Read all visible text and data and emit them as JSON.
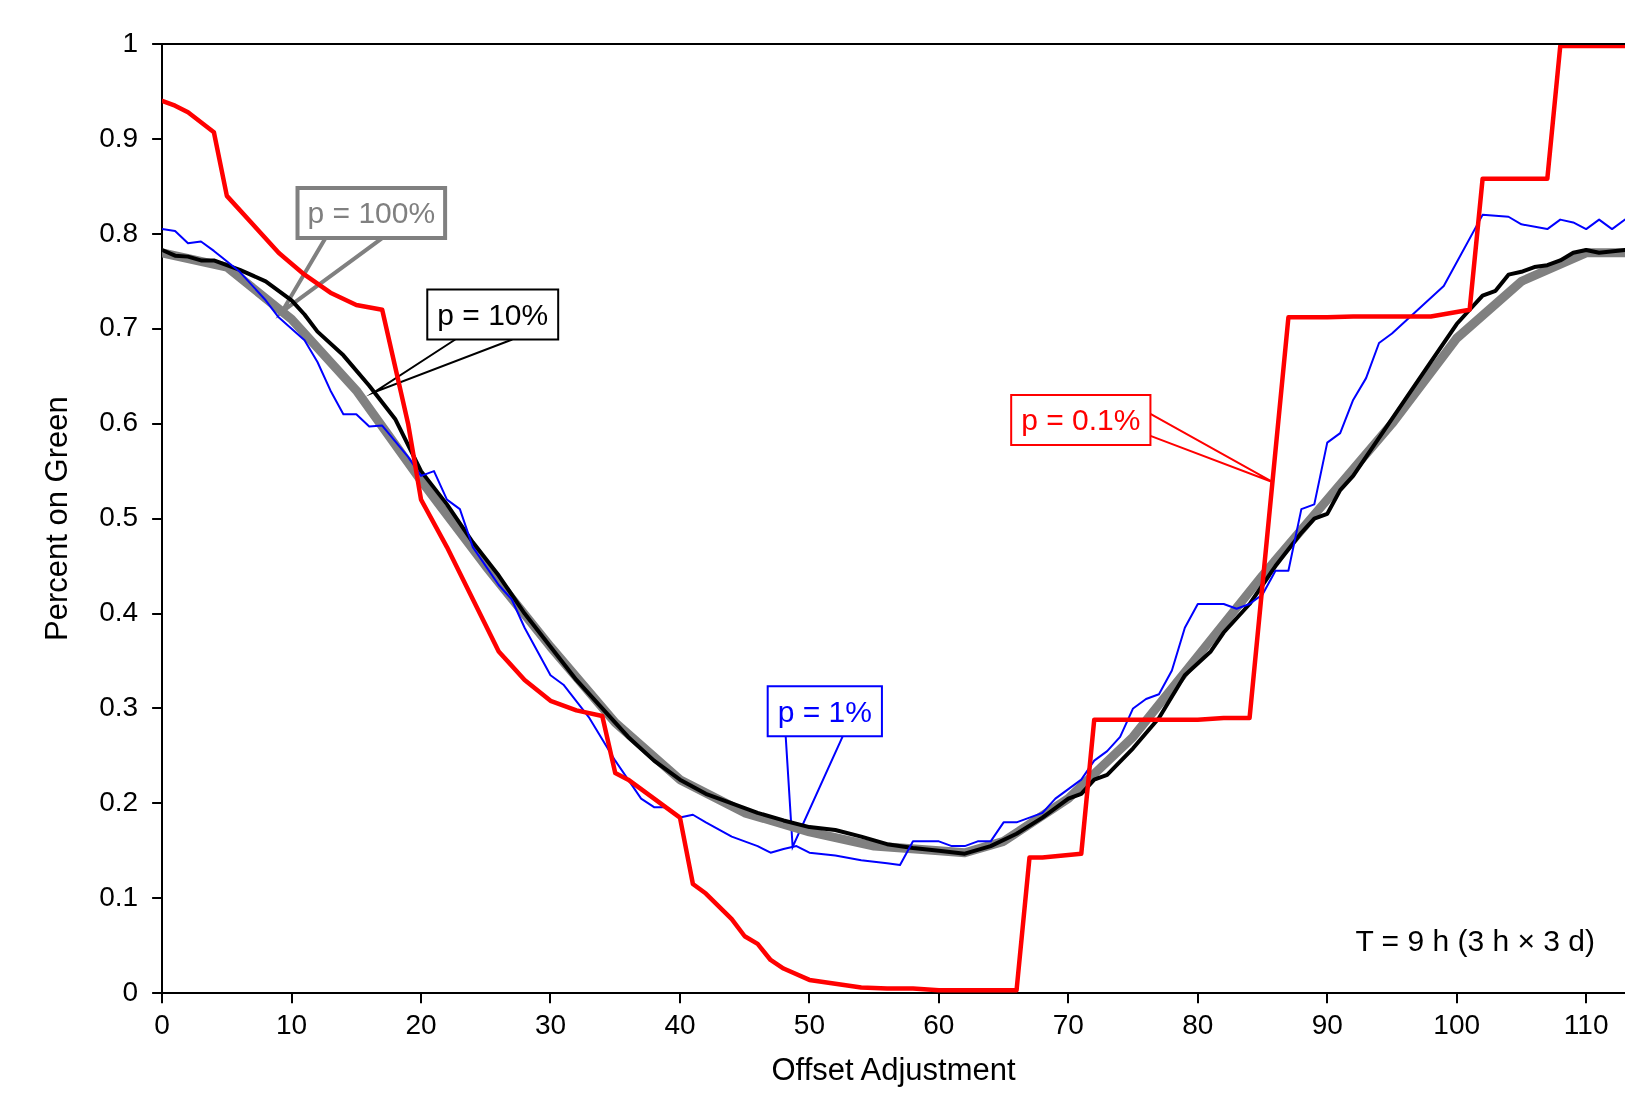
{
  "chart_data": {
    "type": "line",
    "xlabel": "Offset Adjustment",
    "ylabel": "Percent on Green",
    "xlim": [
      0,
      113
    ],
    "ylim": [
      0,
      1
    ],
    "xticks": [
      0,
      10,
      20,
      30,
      40,
      50,
      60,
      70,
      80,
      90,
      100,
      110
    ],
    "yticks": [
      0,
      0.1,
      0.2,
      0.3,
      0.4,
      0.5,
      0.6,
      0.7,
      0.8,
      0.9,
      1
    ],
    "grid": false,
    "legend": false,
    "marker": "none",
    "line_style": "solid",
    "series": [
      {
        "name": "p = 100%",
        "color": "#808080",
        "x": [
          0,
          5,
          10,
          15,
          20,
          25,
          30,
          35,
          40,
          45,
          50,
          55,
          60,
          62,
          65,
          70,
          75,
          80,
          85,
          90,
          95,
          100,
          105,
          110,
          113
        ],
        "values": [
          0.78,
          0.765,
          0.71,
          0.635,
          0.54,
          0.45,
          0.365,
          0.285,
          0.225,
          0.19,
          0.17,
          0.155,
          0.15,
          0.148,
          0.16,
          0.205,
          0.27,
          0.355,
          0.44,
          0.52,
          0.6,
          0.69,
          0.75,
          0.78,
          0.78
        ]
      },
      {
        "name": "p = 10%",
        "color": "#000000",
        "x": [
          0,
          1,
          2,
          3,
          4,
          6,
          8,
          10,
          11,
          12,
          14,
          16,
          18,
          20,
          22,
          24,
          26,
          28,
          30,
          32,
          34,
          36,
          38,
          40,
          42,
          44,
          46,
          48,
          50,
          52,
          54,
          56,
          58,
          60,
          62,
          64,
          66,
          68,
          70,
          71,
          72,
          73,
          75,
          77,
          79,
          81,
          82,
          84,
          86,
          88,
          89,
          90,
          91,
          92,
          94,
          96,
          98,
          100,
          101,
          102,
          103,
          104,
          105,
          106,
          107,
          108,
          109,
          110,
          111,
          113
        ],
        "values": [
          0.783,
          0.777,
          0.776,
          0.772,
          0.772,
          0.762,
          0.75,
          0.73,
          0.715,
          0.697,
          0.672,
          0.64,
          0.605,
          0.55,
          0.515,
          0.475,
          0.44,
          0.4,
          0.365,
          0.33,
          0.3,
          0.27,
          0.245,
          0.225,
          0.21,
          0.2,
          0.19,
          0.182,
          0.175,
          0.172,
          0.165,
          0.157,
          0.153,
          0.15,
          0.147,
          0.155,
          0.168,
          0.185,
          0.205,
          0.21,
          0.225,
          0.23,
          0.258,
          0.29,
          0.335,
          0.36,
          0.38,
          0.41,
          0.45,
          0.485,
          0.5,
          0.505,
          0.53,
          0.545,
          0.585,
          0.625,
          0.665,
          0.705,
          0.72,
          0.735,
          0.74,
          0.757,
          0.76,
          0.765,
          0.767,
          0.772,
          0.78,
          0.783,
          0.78,
          0.783
        ]
      },
      {
        "name": "p = 1%",
        "color": "#0000ff",
        "x": [
          0,
          1,
          2,
          3,
          4,
          6,
          8,
          9,
          11,
          12,
          13,
          14,
          15,
          16,
          17,
          19,
          20,
          21,
          22,
          23,
          24,
          26,
          27,
          28,
          29,
          30,
          31,
          33,
          35,
          37,
          38,
          39,
          40,
          41,
          42,
          44,
          46,
          47,
          48,
          49,
          50,
          52,
          54,
          56,
          57,
          58,
          60,
          61,
          62,
          63,
          64,
          65,
          66,
          67,
          68,
          69,
          71,
          72,
          73,
          74,
          75,
          76,
          77,
          78,
          79,
          80,
          82,
          83,
          84,
          85,
          86,
          87,
          88,
          89,
          90,
          91,
          92,
          93,
          94,
          95,
          97,
          99,
          102,
          104,
          105,
          107,
          108,
          109,
          110,
          111,
          112,
          113
        ],
        "values": [
          0.805,
          0.803,
          0.79,
          0.792,
          0.782,
          0.76,
          0.73,
          0.712,
          0.688,
          0.665,
          0.635,
          0.61,
          0.61,
          0.597,
          0.598,
          0.565,
          0.545,
          0.55,
          0.52,
          0.51,
          0.47,
          0.43,
          0.415,
          0.385,
          0.36,
          0.335,
          0.325,
          0.29,
          0.245,
          0.205,
          0.196,
          0.196,
          0.185,
          0.188,
          0.18,
          0.165,
          0.155,
          0.148,
          0.152,
          0.155,
          0.148,
          0.145,
          0.14,
          0.137,
          0.135,
          0.16,
          0.16,
          0.155,
          0.155,
          0.16,
          0.16,
          0.18,
          0.18,
          0.185,
          0.19,
          0.205,
          0.225,
          0.245,
          0.255,
          0.27,
          0.3,
          0.31,
          0.315,
          0.34,
          0.385,
          0.41,
          0.41,
          0.405,
          0.41,
          0.42,
          0.445,
          0.445,
          0.51,
          0.515,
          0.58,
          0.59,
          0.625,
          0.648,
          0.685,
          0.695,
          0.72,
          0.745,
          0.82,
          0.818,
          0.81,
          0.805,
          0.815,
          0.812,
          0.805,
          0.815,
          0.805,
          0.815
        ]
      },
      {
        "name": "p = 0.1%",
        "color": "#ff0000",
        "x": [
          0,
          1,
          2,
          4,
          5,
          7,
          9,
          11,
          13,
          15,
          17,
          19,
          20,
          22,
          24,
          26,
          28,
          30,
          32,
          34,
          35,
          36,
          38,
          40,
          41,
          42,
          44,
          45,
          46,
          47,
          48,
          50,
          52,
          54,
          56,
          58,
          60,
          62,
          64,
          66,
          67,
          68,
          71,
          72,
          76,
          80,
          82,
          84,
          87,
          90,
          92,
          98,
          101,
          102,
          107,
          108,
          113
        ],
        "values": [
          0.94,
          0.935,
          0.928,
          0.907,
          0.84,
          0.81,
          0.78,
          0.757,
          0.738,
          0.725,
          0.72,
          0.6,
          0.52,
          0.47,
          0.415,
          0.36,
          0.33,
          0.308,
          0.298,
          0.292,
          0.232,
          0.225,
          0.205,
          0.185,
          0.115,
          0.105,
          0.078,
          0.06,
          0.052,
          0.035,
          0.026,
          0.014,
          0.01,
          0.006,
          0.005,
          0.005,
          0.003,
          0.003,
          0.003,
          0.003,
          0.143,
          0.143,
          0.147,
          0.288,
          0.288,
          0.288,
          0.29,
          0.29,
          0.712,
          0.712,
          0.713,
          0.713,
          0.72,
          0.858,
          0.858,
          0.998,
          0.998
        ]
      }
    ],
    "annotations": [
      "T = 9 h (3 h × 3 d)"
    ]
  }
}
